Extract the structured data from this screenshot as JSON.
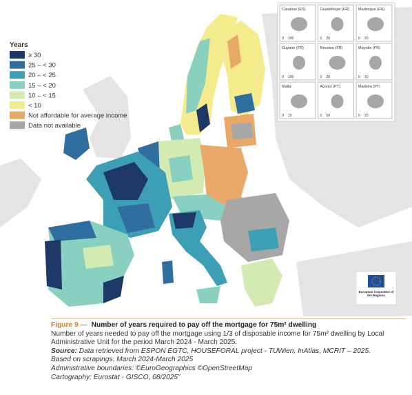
{
  "legend": {
    "title": "Years",
    "items": [
      {
        "label": "≥ 30",
        "color": "#1d3767"
      },
      {
        "label": "25 – < 30",
        "color": "#2f6e9e"
      },
      {
        "label": "20 – < 25",
        "color": "#3d9fb6"
      },
      {
        "label": "15 – < 20",
        "color": "#8ad0c0"
      },
      {
        "label": "10 – < 15",
        "color": "#d3ebb3"
      },
      {
        "label": "< 10",
        "color": "#f4ec8c"
      },
      {
        "label": "Not affordable for average income",
        "color": "#e8a867"
      },
      {
        "label": "Data not available",
        "color": "#a7a7a7"
      }
    ]
  },
  "insets": [
    {
      "label": "Canarias (ES)",
      "scale": [
        "0",
        "100"
      ]
    },
    {
      "label": "Guadeloupe (FR)",
      "scale": [
        "0",
        "20"
      ]
    },
    {
      "label": "Martinique (FR)",
      "scale": [
        "0",
        "20"
      ]
    },
    {
      "label": "Guyane (FR)",
      "scale": [
        "0",
        "100"
      ]
    },
    {
      "label": "Reunion (FR)",
      "scale": [
        "0",
        "20"
      ]
    },
    {
      "label": "Mayotte (FR)",
      "scale": [
        "0",
        "10"
      ]
    },
    {
      "label": "Malta",
      "scale": [
        "0",
        "10"
      ]
    },
    {
      "label": "Açores (PT)",
      "scale": [
        "0",
        "50"
      ]
    },
    {
      "label": "Madeira (PT)",
      "scale": [
        "0",
        "20"
      ]
    }
  ],
  "logo": {
    "text": "European Committee of the Regions"
  },
  "caption": {
    "figure": "Figure 9 —",
    "title": "Number of years required to pay off the mortgage for 75m² dwelling",
    "description": "Number of years needed to pay off the mortgage using 1/3 of disposable income for 75m² dwelling by Local Administrative Unit for the period March 2024 - March 2025.",
    "source_label": "Source:",
    "source": "Data retrieved from ESPON EGTC, HOUSEFORAL project - TUWien, InAtlas, MCRIT – 2025.",
    "notes": [
      "Based on scrapings: March 2024-March 2025",
      "Administrative boundaries: ©EuroGeographics ©OpenStreetMap",
      "Cartography: Eurostat - GISCO, 08/2025”"
    ]
  }
}
